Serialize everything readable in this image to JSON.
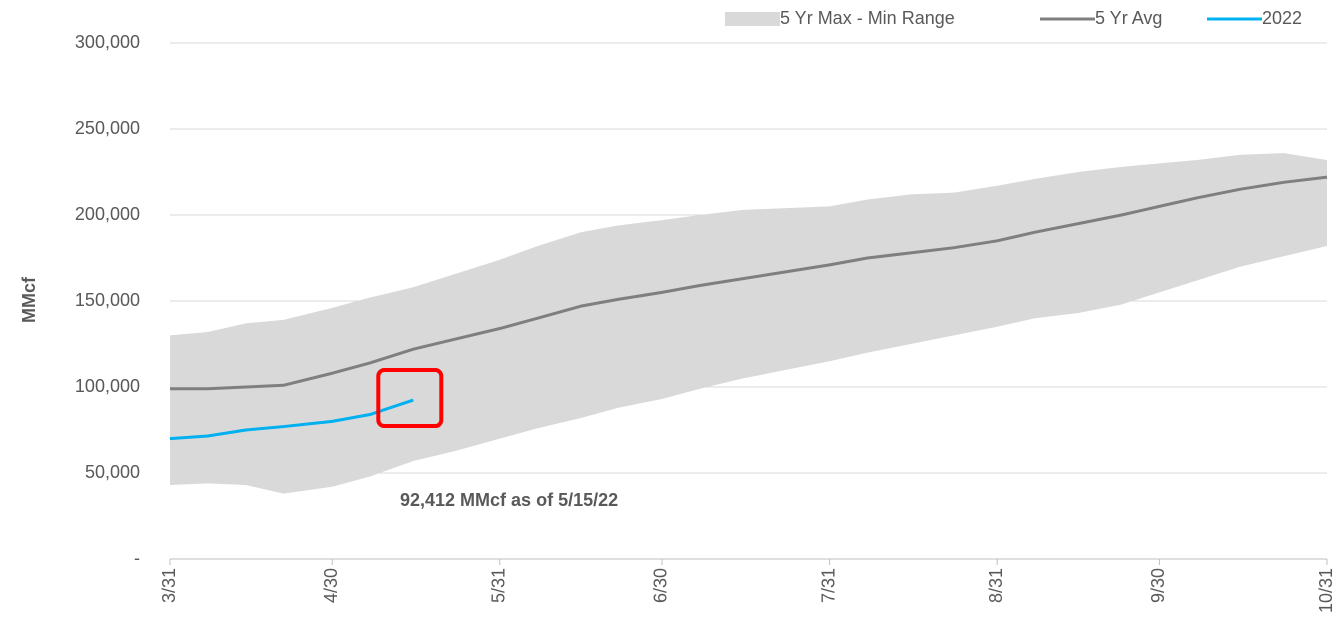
{
  "chart_data": {
    "type": "line",
    "ylabel": "MMcf",
    "annotation": "92,412 MMcf as of 5/15/22",
    "x": [
      "3/31",
      "4/7",
      "4/14",
      "4/21",
      "4/30",
      "5/7",
      "5/15",
      "5/23",
      "5/31",
      "6/7",
      "6/15",
      "6/22",
      "6/30",
      "7/7",
      "7/15",
      "7/23",
      "7/31",
      "8/7",
      "8/15",
      "8/23",
      "8/31",
      "9/7",
      "9/15",
      "9/23",
      "9/30",
      "10/7",
      "10/15",
      "10/23",
      "10/31"
    ],
    "xlim": [
      "3/31",
      "10/31"
    ],
    "xticks": [
      "3/31",
      "4/30",
      "5/31",
      "6/30",
      "7/31",
      "8/31",
      "9/30",
      "10/31"
    ],
    "ylim": [
      0,
      300000
    ],
    "yticks": [
      {
        "value": 0,
        "label": "-"
      },
      {
        "value": 50000,
        "label": "50,000"
      },
      {
        "value": 100000,
        "label": "100,000"
      },
      {
        "value": 150000,
        "label": "150,000"
      },
      {
        "value": 200000,
        "label": "200,000"
      },
      {
        "value": 250000,
        "label": "250,000"
      },
      {
        "value": 300000,
        "label": "300,000"
      }
    ],
    "grid": true,
    "legend": "top-right",
    "series": [
      {
        "name": "5 Yr Max - Min Range",
        "color": "#d9d9d9",
        "kind": "band",
        "values": [
          130000,
          132000,
          137000,
          139000,
          146000,
          152000,
          158000,
          166000,
          174000,
          182000,
          190000,
          194000,
          197000,
          200000,
          203000,
          204000,
          205000,
          209000,
          212000,
          213000,
          217000,
          221000,
          225000,
          228000,
          230000,
          232000,
          235000,
          236000,
          232000
        ],
        "min": [
          43000,
          44000,
          43000,
          38000,
          42000,
          48000,
          57000,
          63000,
          70000,
          76000,
          82000,
          88000,
          93000,
          99000,
          105000,
          110000,
          115000,
          120000,
          125000,
          130000,
          135000,
          140000,
          143000,
          148000,
          155000,
          162000,
          170000,
          176000,
          182000
        ]
      },
      {
        "name": "5 Yr Avg",
        "color": "#7f7f7f",
        "values": [
          99000,
          99000,
          100000,
          101000,
          108000,
          114000,
          122000,
          128000,
          134000,
          140000,
          147000,
          151000,
          155000,
          159000,
          163000,
          167000,
          171000,
          175000,
          178000,
          181000,
          185000,
          190000,
          195000,
          200000,
          205000,
          210000,
          215000,
          219000,
          222000
        ]
      },
      {
        "name": "2022",
        "color": "#00b0f0",
        "values": [
          70000,
          71500,
          75000,
          77000,
          80000,
          84000,
          92412,
          null,
          null,
          null,
          null,
          null,
          null,
          null,
          null,
          null,
          null,
          null,
          null,
          null,
          null,
          null,
          null,
          null,
          null,
          null,
          null,
          null,
          null
        ]
      }
    ]
  }
}
